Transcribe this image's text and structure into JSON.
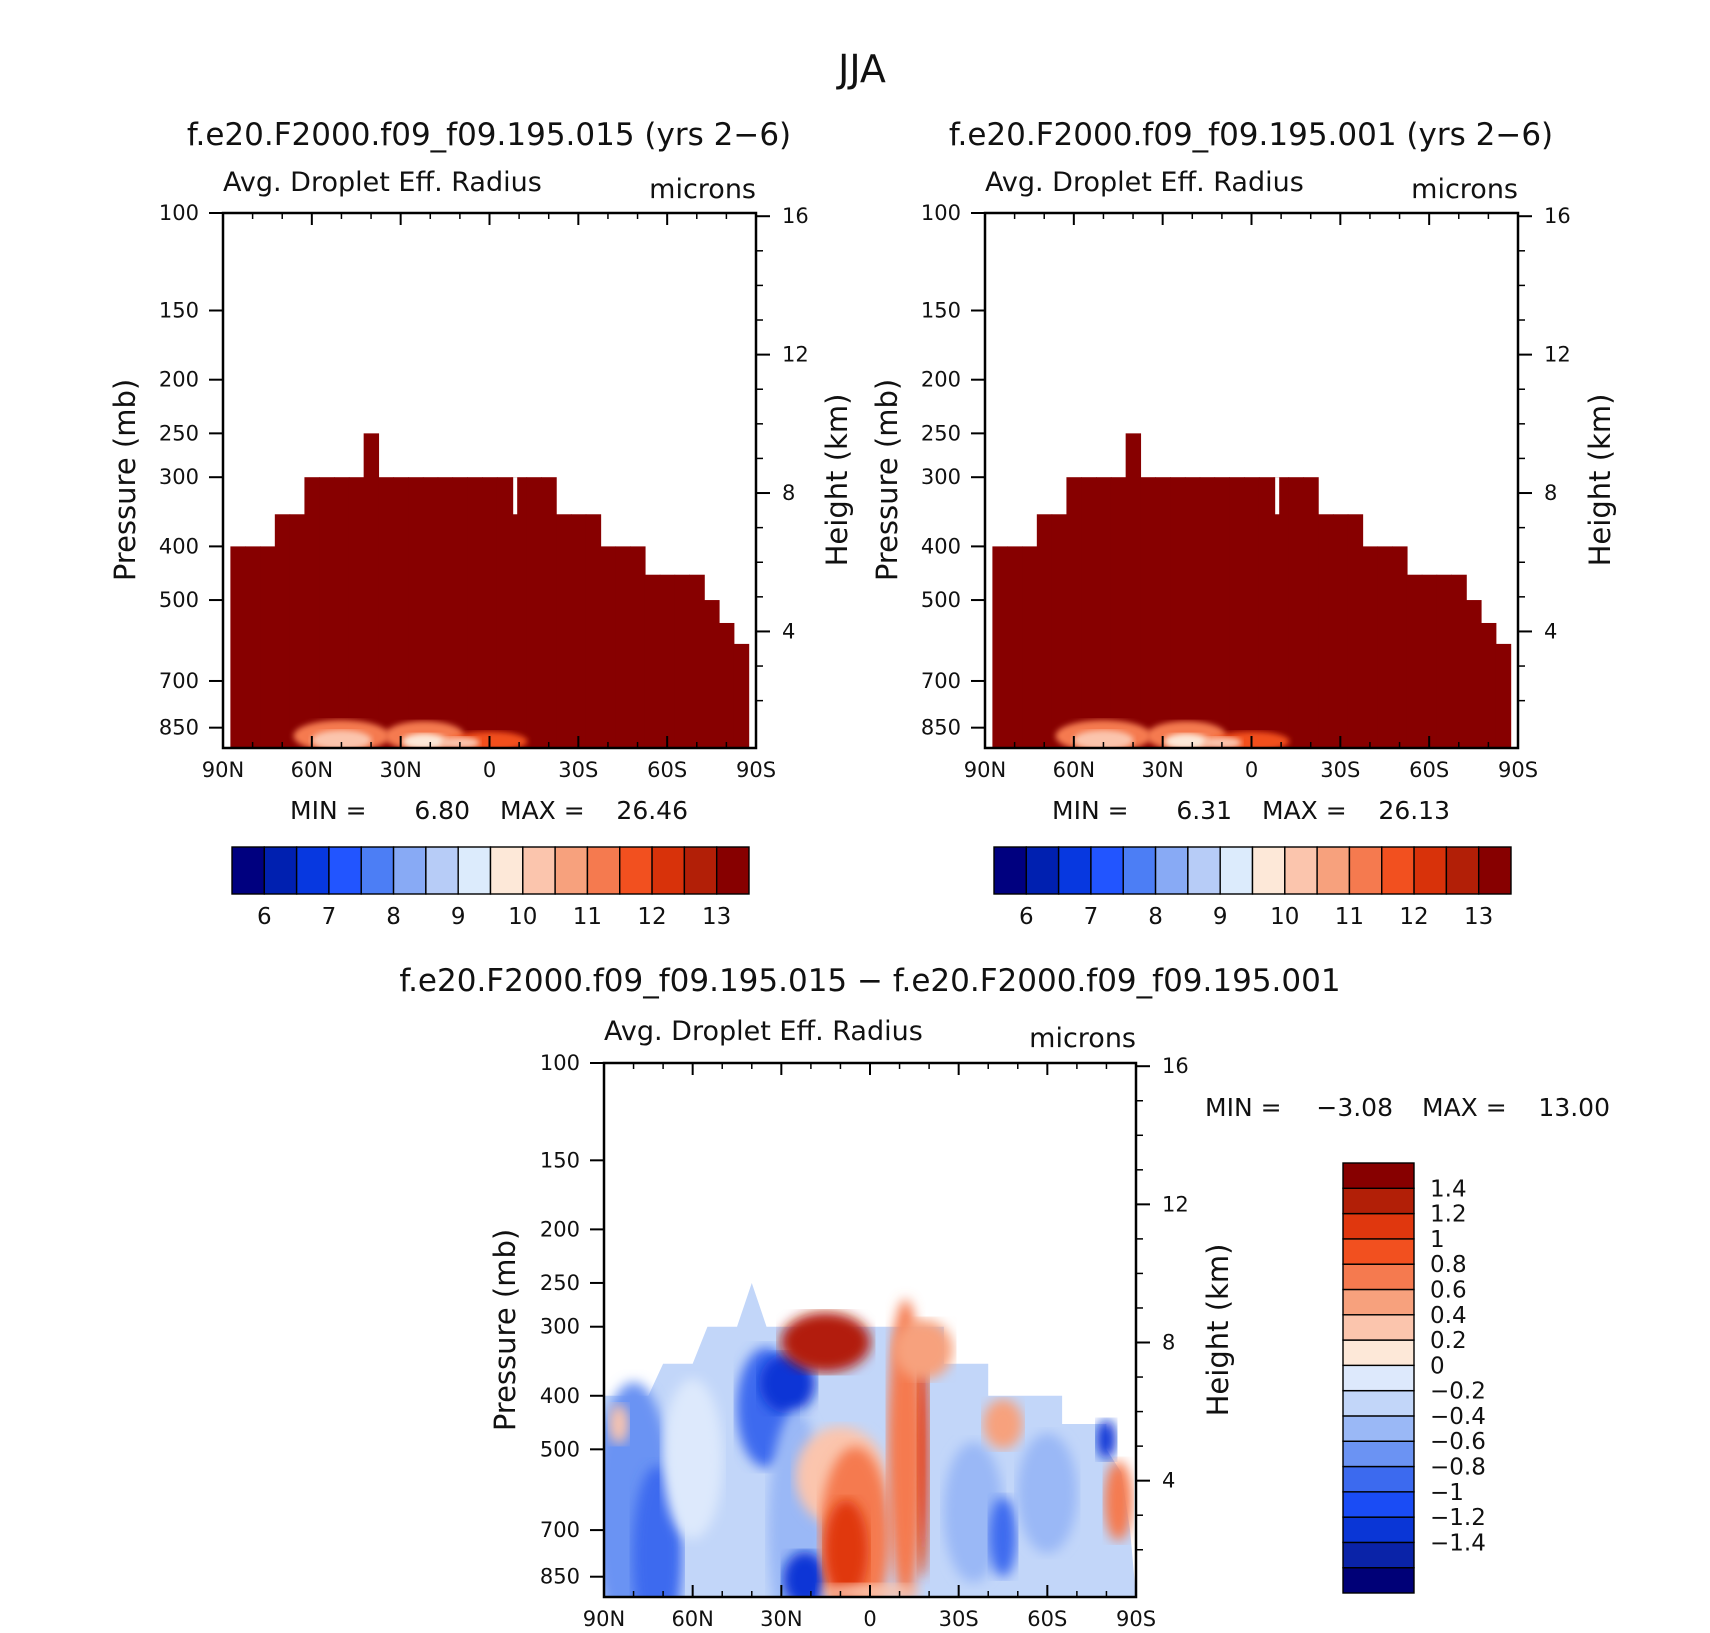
{
  "page_title": "JJA",
  "panels": [
    {
      "id": "p1",
      "title": "f.e20.F2000.f09_f09.195.015 (yrs 2−6)",
      "variable": "Avg. Droplet Eff. Radius",
      "units": "microns",
      "stats": {
        "min_label": "MIN =",
        "min": "6.80",
        "max_label": "MAX =",
        "max": "26.46"
      }
    },
    {
      "id": "p2",
      "title": "f.e20.F2000.f09_f09.195.001 (yrs 2−6)",
      "variable": "Avg. Droplet Eff. Radius",
      "units": "microns",
      "stats": {
        "min_label": "MIN =",
        "min": "6.31",
        "max_label": "MAX =",
        "max": "26.13"
      }
    },
    {
      "id": "p3",
      "title": "f.e20.F2000.f09_f09.195.015 − f.e20.F2000.f09_f09.195.001",
      "variable": "Avg. Droplet Eff. Radius",
      "units": "microns",
      "stats": {
        "min_label": "MIN =",
        "min": "−3.08",
        "max_label": "MAX =",
        "max": "13.00"
      }
    }
  ],
  "colorbars": {
    "top": {
      "colors": [
        "#00007f",
        "#0020b0",
        "#0738e0",
        "#2255ff",
        "#4c7ef5",
        "#88aaf5",
        "#b7ccf7",
        "#dcebfc",
        "#fde8d8",
        "#fbc5ad",
        "#f7a17d",
        "#f57a4f",
        "#f2501f",
        "#d8320a",
        "#b21f07",
        "#870000"
      ],
      "tick_labels": [
        "6",
        "7",
        "8",
        "9",
        "10",
        "11",
        "12",
        "13"
      ]
    },
    "diff": {
      "colors": [
        "#000077",
        "#0a23a8",
        "#0a36d6",
        "#1a4cf5",
        "#3c6aef",
        "#6b93f3",
        "#9ab8f6",
        "#c2d6f9",
        "#dde9fc",
        "#fde8d8",
        "#fbc5ad",
        "#f7a17d",
        "#f57a4f",
        "#f2501f",
        "#e0370e",
        "#b21f07",
        "#870000"
      ],
      "tick_labels": [
        "1.4",
        "1.2",
        "1",
        "0.8",
        "0.6",
        "0.4",
        "0.2",
        "0",
        "−0.2",
        "−0.4",
        "−0.6",
        "−0.8",
        "−1",
        "−1.2",
        "−1.4"
      ]
    }
  },
  "chart_data": [
    {
      "type": "heatmap",
      "title": "f.e20.F2000.f09_f09.195.015 (yrs 2−6)",
      "xlabel": "",
      "ylabel": "Pressure (mb)",
      "y2label": "Height (km)",
      "x_ticks": [
        "90N",
        "60N",
        "30N",
        "0",
        "30S",
        "60S",
        "90S"
      ],
      "x_range": [
        90,
        -90
      ],
      "y_ticks": [
        100,
        150,
        200,
        250,
        300,
        400,
        500,
        700,
        850
      ],
      "y_range": [
        100,
        925
      ],
      "y_scale": "log",
      "y2_ticks": [
        4,
        8,
        12,
        16
      ],
      "field_levels": [
        "6",
        "7",
        "8",
        "9",
        "10",
        "11",
        "12",
        "13"
      ],
      "cloud_top_pressure_by_lat": {
        "lat": [
          90,
          85,
          80,
          75,
          70,
          65,
          60,
          55,
          50,
          45,
          40,
          35,
          30,
          25,
          20,
          15,
          10,
          5,
          0,
          -5,
          -10,
          -15,
          -20,
          -25,
          -30,
          -35,
          -40,
          -45,
          -50,
          -55,
          -60,
          -65,
          -70,
          -75,
          -80,
          -85,
          -90
        ],
        "top": [
          null,
          400,
          400,
          400,
          350,
          350,
          300,
          300,
          300,
          300,
          250,
          300,
          300,
          300,
          300,
          300,
          300,
          300,
          300,
          300,
          300,
          300,
          300,
          350,
          350,
          350,
          400,
          400,
          400,
          450,
          450,
          450,
          450,
          500,
          550,
          600,
          null
        ]
      },
      "max": 26.46,
      "min": 6.8
    },
    {
      "type": "heatmap",
      "title": "f.e20.F2000.f09_f09.195.001 (yrs 2−6)",
      "xlabel": "",
      "ylabel": "Pressure (mb)",
      "y2label": "Height (km)",
      "x_ticks": [
        "90N",
        "60N",
        "30N",
        "0",
        "30S",
        "60S",
        "90S"
      ],
      "x_range": [
        90,
        -90
      ],
      "y_ticks": [
        100,
        150,
        200,
        250,
        300,
        400,
        500,
        700,
        850
      ],
      "y_range": [
        100,
        925
      ],
      "y_scale": "log",
      "y2_ticks": [
        4,
        8,
        12,
        16
      ],
      "field_levels": [
        "6",
        "7",
        "8",
        "9",
        "10",
        "11",
        "12",
        "13"
      ],
      "cloud_top_pressure_by_lat": {
        "lat": [
          90,
          85,
          80,
          75,
          70,
          65,
          60,
          55,
          50,
          45,
          40,
          35,
          30,
          25,
          20,
          15,
          10,
          5,
          0,
          -5,
          -10,
          -15,
          -20,
          -25,
          -30,
          -35,
          -40,
          -45,
          -50,
          -55,
          -60,
          -65,
          -70,
          -75,
          -80,
          -85,
          -90
        ],
        "top": [
          null,
          400,
          400,
          400,
          350,
          350,
          300,
          300,
          300,
          300,
          250,
          300,
          300,
          300,
          300,
          300,
          300,
          300,
          300,
          300,
          300,
          300,
          300,
          350,
          350,
          350,
          400,
          400,
          400,
          450,
          450,
          450,
          450,
          500,
          550,
          600,
          null
        ]
      },
      "max": 26.13,
      "min": 6.31
    },
    {
      "type": "heatmap",
      "title": "f.e20.F2000.f09_f09.195.015 − f.e20.F2000.f09_f09.195.001",
      "xlabel": "",
      "ylabel": "Pressure (mb)",
      "y2label": "Height (km)",
      "x_ticks": [
        "90N",
        "60N",
        "30N",
        "0",
        "30S",
        "60S",
        "90S"
      ],
      "x_range": [
        90,
        -90
      ],
      "y_ticks": [
        100,
        150,
        200,
        250,
        300,
        400,
        500,
        700,
        850
      ],
      "y_range": [
        100,
        925
      ],
      "y_scale": "log",
      "y2_ticks": [
        4,
        8,
        12,
        16
      ],
      "field_levels": [
        "1.4",
        "1.2",
        "1",
        "0.8",
        "0.6",
        "0.4",
        "0.2",
        "0",
        "−0.2",
        "−0.4",
        "−0.6",
        "−0.8",
        "−1",
        "−1.2",
        "−1.4"
      ],
      "max": 13.0,
      "min": -3.08
    }
  ]
}
